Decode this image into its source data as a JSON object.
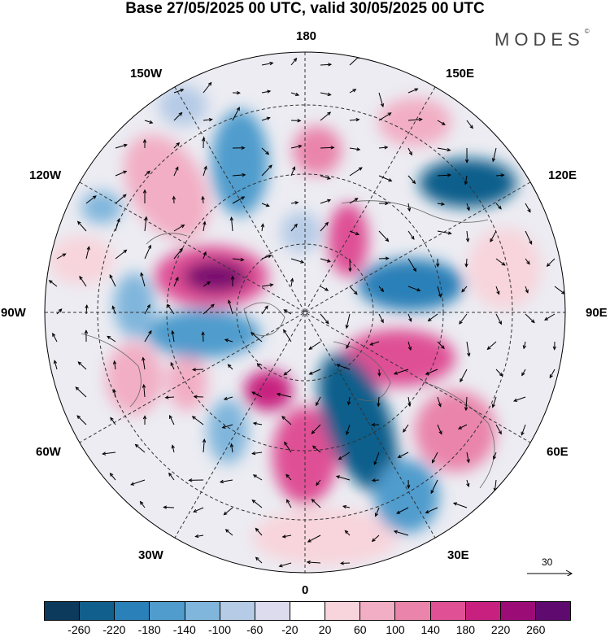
{
  "header": {
    "title": "Base 27/05/2025 00 UTC, valid 30/05/2025 00 UTC",
    "brand": "MODES",
    "brand_mark": "©"
  },
  "map": {
    "projection": "north-polar-stereographic",
    "longitude_labels": {
      "top": "180",
      "top_left": "150W",
      "top_right": "150E",
      "upper_left": "120W",
      "upper_right": "120E",
      "left": "90W",
      "right": "90E",
      "lower_left": "60W",
      "lower_right": "60E",
      "bottom_left": "30W",
      "bottom_right": "30E",
      "bottom": "0"
    },
    "reference_vector_label": "30"
  },
  "colorbar": {
    "colors": [
      "#0b3a5c",
      "#115f8c",
      "#2a80b8",
      "#4f9ccd",
      "#80b6dc",
      "#b5cbe6",
      "#dcdcee",
      "#ffffff",
      "#f8d4dc",
      "#f2aec4",
      "#ea84aa",
      "#df5095",
      "#c8207f",
      "#9c0c77",
      "#5e0a6e"
    ],
    "tick_labels": [
      "-260",
      "-220",
      "-180",
      "-140",
      "-100",
      "-60",
      "-20",
      "20",
      "60",
      "100",
      "140",
      "180",
      "220",
      "260"
    ]
  }
}
